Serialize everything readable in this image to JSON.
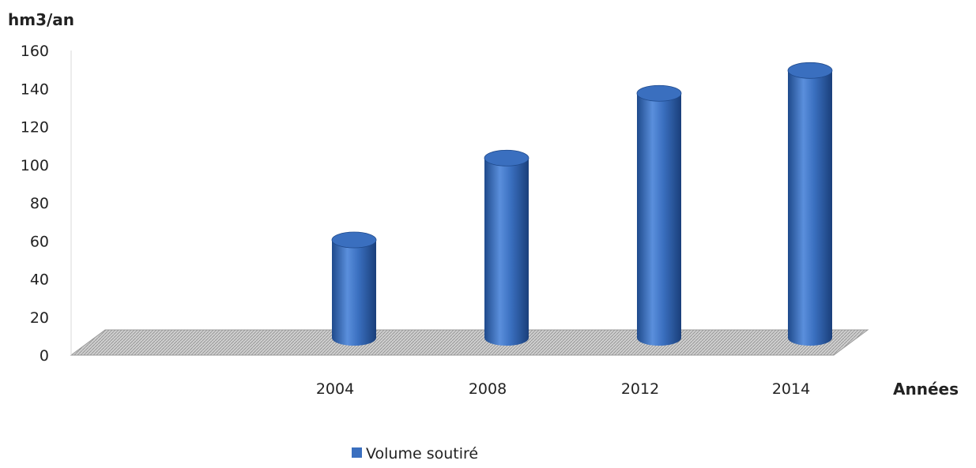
{
  "chart_data": {
    "type": "bar",
    "title": "",
    "ylabel": "hm3/an",
    "xlabel": "Années",
    "categories": [
      "2004",
      "2008",
      "2012",
      "2014"
    ],
    "series": [
      {
        "name": "Volume soutiré",
        "values": [
          63,
          106,
          140,
          152
        ]
      }
    ],
    "ylim": [
      0,
      160
    ],
    "yticks": [
      0,
      20,
      40,
      60,
      80,
      100,
      120,
      140,
      160
    ],
    "ytick_labels": [
      "0",
      "20",
      "40",
      "60",
      "80",
      "100",
      "120",
      "140",
      "160"
    ],
    "grid": false,
    "legend_position": "bottom-center",
    "style": "3d-cylinder",
    "colors": {
      "bar": "#3a6fbf",
      "bar_dark": "#1f4a8c",
      "bar_light": "#7aa6e6",
      "floor": "#bdbdbd"
    }
  }
}
